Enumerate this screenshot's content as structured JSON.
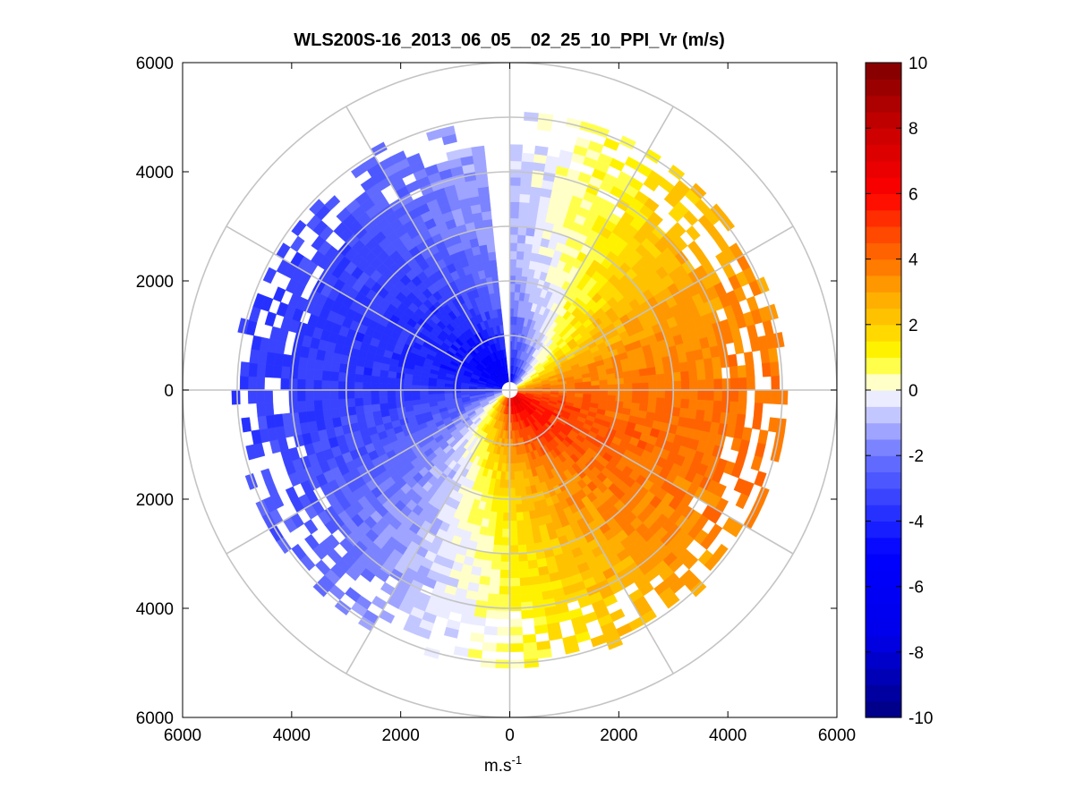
{
  "chart_data": {
    "type": "heatmap",
    "subtype": "polar-ppi",
    "title": "WLS200S-16_2013_06_05__02_25_10_PPI_Vr (m/s)",
    "xlabel": "m.s",
    "xlabel_sup": "-1",
    "ylabel": "",
    "xlim": [
      -6000,
      6000
    ],
    "ylim": [
      -6000,
      6000
    ],
    "x_ticks": [
      -6000,
      -4000,
      -2000,
      0,
      2000,
      4000,
      6000
    ],
    "x_tick_labels": [
      "6000",
      "4000",
      "2000",
      "0",
      "2000",
      "4000",
      "6000"
    ],
    "y_ticks": [
      6000,
      4000,
      2000,
      0,
      -2000,
      -4000,
      -6000
    ],
    "y_tick_labels": [
      "6000",
      "4000",
      "2000",
      "0",
      "2000",
      "4000",
      "6000"
    ],
    "polar_grid": {
      "ring_radii": [
        1000,
        2000,
        3000,
        4000,
        5000,
        6000
      ],
      "spoke_angles_deg": [
        0,
        30,
        60,
        90,
        120,
        150,
        180,
        210,
        240,
        270,
        300,
        330
      ]
    },
    "colorbar": {
      "min": -10,
      "max": 10,
      "ticks": [
        10,
        8,
        6,
        4,
        2,
        0,
        -2,
        -4,
        -6,
        -8,
        -10
      ],
      "tick_labels": [
        "10",
        "8",
        "6",
        "4",
        "2",
        "0",
        "-2",
        "-4",
        "-6",
        "-8",
        "-10"
      ],
      "levels": 40
    },
    "field": {
      "description": "Radial velocity scan; approaching (negative) to the north-west, receding (positive) to the south-east",
      "max_range": 5000,
      "min_range": 150,
      "azimuth_step_deg": 3,
      "range_step": 150,
      "gap_azimuth_deg": [
        -3,
        3
      ],
      "core_positive_max": 7,
      "core_negative_min": -7,
      "far_positive": 4,
      "far_negative": -3.5
    }
  }
}
